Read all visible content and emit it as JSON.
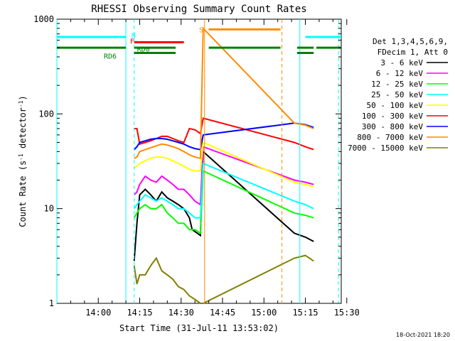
{
  "chart_data": {
    "type": "line",
    "title": "RHESSI Observing Summary Count Rates",
    "xlabel": "Start Time (31-Jul-11 13:53:02)",
    "ylabel": "Count Rate (s⁻¹ detector⁻¹)",
    "ylabel_parts": {
      "a": "Count Rate (s",
      "b": "-1",
      "c": " detector",
      "d": "-1",
      "e": ")"
    },
    "y_scale": "log",
    "ylim": [
      1,
      1000
    ],
    "xlim_min": [
      -8.0,
      95.0
    ],
    "y_ticks": [
      "1",
      "10",
      "100",
      "1000"
    ],
    "x_ticks": [
      {
        "t": 7,
        "label": "14:00"
      },
      {
        "t": 22,
        "label": "14:15"
      },
      {
        "t": 37,
        "label": "14:30"
      },
      {
        "t": 52,
        "label": "14:45"
      },
      {
        "t": 67,
        "label": "15:00"
      },
      {
        "t": 82,
        "label": "15:15"
      },
      {
        "t": 97,
        "label": "15:30"
      }
    ],
    "legend_header": [
      "Det 1,3,4,5,6,9,",
      "FDecim 1, Att 0"
    ],
    "legend_placement": "right",
    "series": [
      {
        "name": "3 - 6 keV",
        "color": "#000000",
        "points": [
          [
            20,
            2.8
          ],
          [
            21,
            7
          ],
          [
            22,
            14
          ],
          [
            24,
            16
          ],
          [
            26,
            14
          ],
          [
            28,
            12
          ],
          [
            30,
            15
          ],
          [
            32,
            13
          ],
          [
            34,
            12
          ],
          [
            36,
            11
          ],
          [
            38,
            10
          ],
          [
            40,
            8
          ],
          [
            41,
            6
          ],
          [
            44,
            5.2
          ],
          [
            45,
            40
          ],
          [
            78,
            5.5
          ],
          [
            82,
            5.0
          ],
          [
            85,
            4.5
          ]
        ]
      },
      {
        "name": "6 - 12 keV",
        "color": "#ff00ff",
        "points": [
          [
            20,
            14
          ],
          [
            21,
            15
          ],
          [
            22,
            18
          ],
          [
            24,
            22
          ],
          [
            26,
            20
          ],
          [
            28,
            19
          ],
          [
            30,
            22
          ],
          [
            32,
            20
          ],
          [
            34,
            18
          ],
          [
            36,
            16
          ],
          [
            38,
            16
          ],
          [
            40,
            14
          ],
          [
            42,
            12
          ],
          [
            44,
            11
          ],
          [
            45,
            45
          ],
          [
            78,
            20
          ],
          [
            82,
            19
          ],
          [
            85,
            18
          ]
        ]
      },
      {
        "name": "12 - 25 keV",
        "color": "#00ff00",
        "points": [
          [
            20,
            8
          ],
          [
            21,
            9
          ],
          [
            22,
            10
          ],
          [
            24,
            11
          ],
          [
            26,
            10
          ],
          [
            28,
            10
          ],
          [
            30,
            11
          ],
          [
            32,
            9
          ],
          [
            34,
            8
          ],
          [
            36,
            7
          ],
          [
            38,
            7
          ],
          [
            40,
            6
          ],
          [
            42,
            6
          ],
          [
            44,
            5.5
          ],
          [
            45,
            25
          ],
          [
            78,
            9
          ],
          [
            82,
            8.5
          ],
          [
            85,
            8
          ]
        ]
      },
      {
        "name": "25 - 50 keV",
        "color": "#00ffff",
        "points": [
          [
            20,
            10
          ],
          [
            21,
            11
          ],
          [
            22,
            12
          ],
          [
            24,
            14
          ],
          [
            26,
            13
          ],
          [
            28,
            12
          ],
          [
            30,
            13
          ],
          [
            32,
            12
          ],
          [
            34,
            11
          ],
          [
            36,
            10
          ],
          [
            38,
            10
          ],
          [
            40,
            9
          ],
          [
            42,
            8
          ],
          [
            44,
            8
          ],
          [
            45,
            30
          ],
          [
            78,
            12
          ],
          [
            82,
            11
          ],
          [
            85,
            10
          ]
        ]
      },
      {
        "name": "50 - 100 keV",
        "color": "#ffff00",
        "points": [
          [
            20,
            27
          ],
          [
            21,
            28
          ],
          [
            22,
            30
          ],
          [
            24,
            32
          ],
          [
            26,
            34
          ],
          [
            28,
            35
          ],
          [
            30,
            35
          ],
          [
            32,
            34
          ],
          [
            34,
            32
          ],
          [
            36,
            30
          ],
          [
            38,
            28
          ],
          [
            40,
            26
          ],
          [
            42,
            25
          ],
          [
            44,
            25
          ],
          [
            45,
            50
          ],
          [
            78,
            19
          ],
          [
            82,
            18
          ],
          [
            85,
            17
          ]
        ]
      },
      {
        "name": "100 - 300 keV",
        "color": "#ff0000",
        "points": [
          [
            20,
            70
          ],
          [
            21,
            70
          ],
          [
            22,
            48
          ],
          [
            24,
            50
          ],
          [
            26,
            52
          ],
          [
            28,
            55
          ],
          [
            30,
            58
          ],
          [
            32,
            58
          ],
          [
            34,
            55
          ],
          [
            36,
            52
          ],
          [
            38,
            50
          ],
          [
            40,
            70
          ],
          [
            42,
            68
          ],
          [
            44,
            62
          ],
          [
            45,
            90
          ],
          [
            78,
            50
          ],
          [
            82,
            45
          ],
          [
            85,
            42
          ]
        ]
      },
      {
        "name": "300 - 800 keV",
        "color": "#0000ff",
        "points": [
          [
            20,
            42
          ],
          [
            21,
            45
          ],
          [
            22,
            50
          ],
          [
            24,
            52
          ],
          [
            26,
            54
          ],
          [
            28,
            55
          ],
          [
            30,
            55
          ],
          [
            32,
            54
          ],
          [
            34,
            52
          ],
          [
            36,
            50
          ],
          [
            38,
            48
          ],
          [
            40,
            45
          ],
          [
            42,
            43
          ],
          [
            44,
            42
          ],
          [
            45,
            60
          ],
          [
            78,
            80
          ],
          [
            82,
            77
          ],
          [
            85,
            72
          ]
        ]
      },
      {
        "name": "800 - 7000 keV",
        "color": "#ff8c00",
        "points": [
          [
            20,
            34
          ],
          [
            21,
            35
          ],
          [
            22,
            40
          ],
          [
            24,
            42
          ],
          [
            26,
            44
          ],
          [
            28,
            46
          ],
          [
            30,
            48
          ],
          [
            32,
            47
          ],
          [
            34,
            45
          ],
          [
            36,
            43
          ],
          [
            38,
            40
          ],
          [
            40,
            37
          ],
          [
            42,
            35
          ],
          [
            44,
            34
          ],
          [
            45,
            800
          ],
          [
            78,
            80
          ],
          [
            82,
            76
          ],
          [
            85,
            70
          ]
        ]
      },
      {
        "name": "7000 - 15000 keV",
        "color": "#808000",
        "points": [
          [
            20,
            2.5
          ],
          [
            21,
            1.6
          ],
          [
            22,
            2.0
          ],
          [
            24,
            2.0
          ],
          [
            26,
            2.5
          ],
          [
            28,
            3.0
          ],
          [
            30,
            2.2
          ],
          [
            32,
            2.0
          ],
          [
            34,
            1.8
          ],
          [
            36,
            1.5
          ],
          [
            38,
            1.4
          ],
          [
            40,
            1.2
          ],
          [
            42,
            1.1
          ],
          [
            44,
            1.0
          ],
          [
            45,
            1.0
          ],
          [
            78,
            3.0
          ],
          [
            82,
            3.2
          ],
          [
            85,
            2.8
          ]
        ]
      }
    ],
    "flag_bars": [
      {
        "label": "N",
        "color": "#00ffff",
        "y": 650,
        "segments": [
          [
            -8,
            17
          ],
          [
            82,
            95
          ]
        ],
        "label_t": 19,
        "label_y": 680
      },
      {
        "label": "F",
        "color": "#ff0000",
        "y": 570,
        "segments": [
          [
            20,
            38
          ]
        ],
        "label_t": 18.5,
        "label_y": 590
      },
      {
        "label": "RD0",
        "color": "#008000",
        "y": 500,
        "segments": [
          [
            -8,
            17
          ],
          [
            20,
            35
          ],
          [
            47,
            73
          ],
          [
            79,
            85
          ],
          [
            86,
            95
          ]
        ],
        "label_t": 21,
        "label_y": 490
      },
      {
        "label": "RD6",
        "color": "#008000",
        "y": 440,
        "segments": [
          [
            20,
            35
          ],
          [
            79,
            85
          ]
        ],
        "label_t": 9,
        "label_y": 410
      },
      {
        "label": "S",
        "color": "#ff8c00",
        "y": 780,
        "segments": [
          [
            47,
            73
          ]
        ],
        "label_t": 43.5,
        "label_y": 780
      }
    ],
    "vlines": [
      {
        "t": -8,
        "color": "#00ffff",
        "dash": false
      },
      {
        "t": 17,
        "color": "#00ffff",
        "dash": false
      },
      {
        "t": 20,
        "color": "#00ffff",
        "dash": true
      },
      {
        "t": 45.5,
        "color": "#ff8c00",
        "dash": false
      },
      {
        "t": 73.5,
        "color": "#ff8c00",
        "dash": true
      },
      {
        "t": 80,
        "color": "#00ffff",
        "dash": false
      },
      {
        "t": 94,
        "color": "#00ffff",
        "dash": true
      }
    ]
  },
  "footer": {
    "date": "18-Oct-2021 18:20"
  }
}
